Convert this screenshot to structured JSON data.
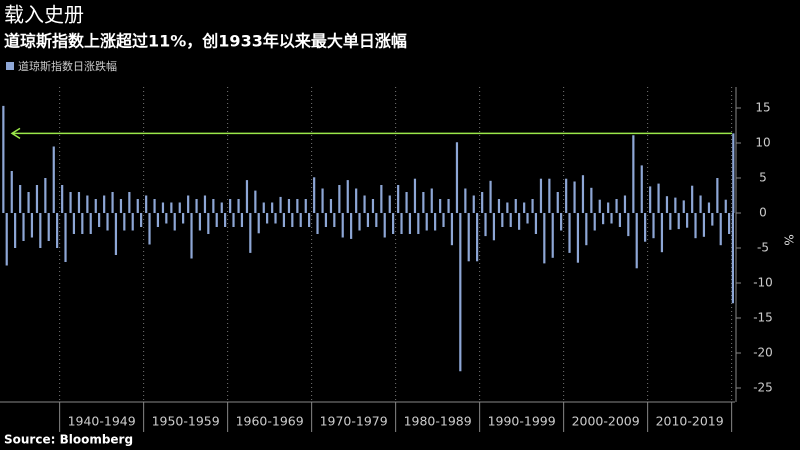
{
  "chart_data": {
    "type": "spike",
    "title": "载入史册",
    "subtitle": "道琼斯指数上涨超过11%，创1933年以来最大单日涨幅",
    "source": "Source: Bloomberg",
    "y_label": "%",
    "series": [
      {
        "name": "道琼斯指数日涨跌幅",
        "color": "#8ea7d6",
        "x": [
          1933.3,
          1933.7,
          1934.3,
          1934.7,
          1935.3,
          1935.7,
          1936.3,
          1936.7,
          1937.3,
          1937.7,
          1938.3,
          1938.7,
          1939.3,
          1939.7,
          1940.3,
          1940.7,
          1941.3,
          1941.7,
          1942.3,
          1942.7,
          1943.3,
          1943.7,
          1944.3,
          1944.7,
          1945.3,
          1945.7,
          1946.3,
          1946.7,
          1947.3,
          1947.7,
          1948.3,
          1948.7,
          1949.3,
          1949.7,
          1950.3,
          1950.7,
          1951.3,
          1951.7,
          1952.3,
          1952.7,
          1953.3,
          1953.7,
          1954.3,
          1954.7,
          1955.3,
          1955.7,
          1956.3,
          1956.7,
          1957.3,
          1957.7,
          1958.3,
          1958.7,
          1959.3,
          1959.7,
          1960.3,
          1960.7,
          1961.3,
          1961.7,
          1962.3,
          1962.7,
          1963.3,
          1963.7,
          1964.3,
          1964.7,
          1965.3,
          1965.7,
          1966.3,
          1966.7,
          1967.3,
          1967.7,
          1968.3,
          1968.7,
          1969.3,
          1969.7,
          1970.3,
          1970.7,
          1971.3,
          1971.7,
          1972.3,
          1972.7,
          1973.3,
          1973.7,
          1974.3,
          1974.7,
          1975.3,
          1975.7,
          1976.3,
          1976.7,
          1977.3,
          1977.7,
          1978.3,
          1978.7,
          1979.3,
          1979.7,
          1980.3,
          1980.7,
          1981.3,
          1981.7,
          1982.3,
          1982.7,
          1983.3,
          1983.7,
          1984.3,
          1984.7,
          1985.3,
          1985.7,
          1986.3,
          1986.7,
          1987.3,
          1987.7,
          1988.3,
          1988.7,
          1989.3,
          1989.7,
          1990.3,
          1990.7,
          1991.3,
          1991.7,
          1992.3,
          1992.7,
          1993.3,
          1993.7,
          1994.3,
          1994.7,
          1995.3,
          1995.7,
          1996.3,
          1996.7,
          1997.3,
          1997.7,
          1998.3,
          1998.7,
          1999.3,
          1999.7,
          2000.3,
          2000.7,
          2001.3,
          2001.7,
          2002.3,
          2002.7,
          2003.3,
          2003.7,
          2004.3,
          2004.7,
          2005.3,
          2005.7,
          2006.3,
          2006.7,
          2007.3,
          2007.7,
          2008.3,
          2008.7,
          2009.3,
          2009.7,
          2010.3,
          2010.7,
          2011.3,
          2011.7,
          2012.3,
          2012.7,
          2013.3,
          2013.7,
          2014.3,
          2014.7,
          2015.3,
          2015.7,
          2016.3,
          2016.7,
          2017.3,
          2017.7,
          2018.3,
          2018.7,
          2019.3,
          2019.7,
          2020.15,
          2020.2
        ],
        "values": [
          15.3,
          -7.5,
          6,
          -5,
          4,
          -4,
          3,
          -3.5,
          4,
          -5,
          5,
          -4,
          9.5,
          -5,
          4,
          -7,
          3,
          -3,
          3,
          -3,
          2.5,
          -3,
          2,
          -2,
          2.5,
          -2.5,
          3,
          -6,
          2,
          -2.5,
          3,
          -2.5,
          2,
          -2,
          2.5,
          -4.5,
          2,
          -2,
          1.5,
          -1.5,
          1.5,
          -2.5,
          1.5,
          -1.5,
          2.5,
          -6.5,
          2,
          -2.5,
          2.5,
          -3,
          2,
          -2,
          1.5,
          -2,
          2,
          -2,
          2,
          -2,
          4.7,
          -5.7,
          3.2,
          -2.9,
          1.5,
          -1.5,
          1.5,
          -1.5,
          2.3,
          -2,
          2,
          -2,
          2,
          -2,
          2,
          -2,
          5.1,
          -3,
          3.5,
          -2,
          2,
          -2,
          4,
          -3.5,
          4.7,
          -3.7,
          3.5,
          -2.5,
          2.5,
          -2,
          2,
          -2,
          4,
          -3.5,
          2.5,
          -3,
          4,
          -3,
          3,
          -3,
          4.9,
          -3,
          3,
          -2.5,
          3.5,
          -2.5,
          2,
          -2,
          2,
          -4.6,
          10.1,
          -22.6,
          3.5,
          -6.9,
          2.5,
          -6.9,
          3,
          -3.3,
          4.6,
          -3.9,
          2,
          -2,
          1.5,
          -2,
          2,
          -2.4,
          1.5,
          -1.5,
          2,
          -3,
          4.9,
          -7.2,
          4.9,
          -6.4,
          3,
          -2.5,
          4.9,
          -5.7,
          4.5,
          -7.1,
          5.4,
          -4.6,
          3.6,
          -2.5,
          1.9,
          -1.6,
          1.5,
          -1.5,
          2,
          -2,
          2.5,
          -3.3,
          11.1,
          -7.9,
          6.8,
          -4.1,
          3.8,
          -3.6,
          4.2,
          -5.6,
          2.4,
          -2.4,
          2.2,
          -2.3,
          1.8,
          -2.1,
          3.9,
          -3.6,
          2.5,
          -3.4,
          1.5,
          -1.8,
          5,
          -4.6,
          1.9,
          -3,
          -12.9,
          11.37
        ]
      }
    ],
    "reference_line": {
      "value": 11.37,
      "color": "#9be84a"
    },
    "xlim": [
      1932.9,
      2020.4
    ],
    "xticks": [
      1940,
      1950,
      1960,
      1970,
      1980,
      1990,
      2000,
      2010,
      2020
    ],
    "decade_labels": [
      "1940-1949",
      "1950-1959",
      "1960-1969",
      "1970-1979",
      "1980-1989",
      "1990-1999",
      "2000-2009",
      "2010-2019"
    ],
    "ylim": [
      -27,
      18
    ],
    "yticks": [
      15,
      10,
      5,
      0,
      -5,
      -10,
      -15,
      -20,
      -25
    ]
  }
}
